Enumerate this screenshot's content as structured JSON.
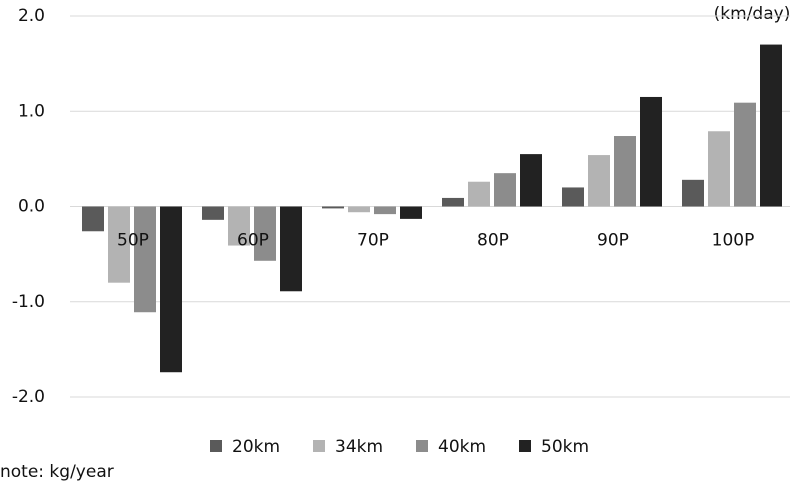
{
  "chart_data": {
    "type": "bar",
    "unit_label": "(km/day)",
    "note": "note: kg/year",
    "categories": [
      "50P",
      "60P",
      "70P",
      "80P",
      "90P",
      "100P"
    ],
    "series": [
      {
        "name": "20km",
        "color": "#5a5a5a",
        "values": [
          -0.26,
          -0.14,
          -0.02,
          0.09,
          0.2,
          0.28
        ]
      },
      {
        "name": "34km",
        "color": "#b3b3b3",
        "values": [
          -0.8,
          -0.41,
          -0.06,
          0.26,
          0.54,
          0.79
        ]
      },
      {
        "name": "40km",
        "color": "#8c8c8c",
        "values": [
          -1.11,
          -0.57,
          -0.08,
          0.35,
          0.74,
          1.09
        ]
      },
      {
        "name": "50km",
        "color": "#222222",
        "values": [
          -1.74,
          -0.89,
          -0.13,
          0.55,
          1.15,
          1.7
        ]
      }
    ],
    "ylim": [
      -2,
      2
    ],
    "yticks": [
      {
        "value": -2,
        "label": "-2.0"
      },
      {
        "value": -1,
        "label": "-1.0"
      },
      {
        "value": 0,
        "label": "0.0"
      },
      {
        "value": 1,
        "label": "1.0"
      },
      {
        "value": 2,
        "label": "2.0"
      }
    ],
    "grid": true
  }
}
